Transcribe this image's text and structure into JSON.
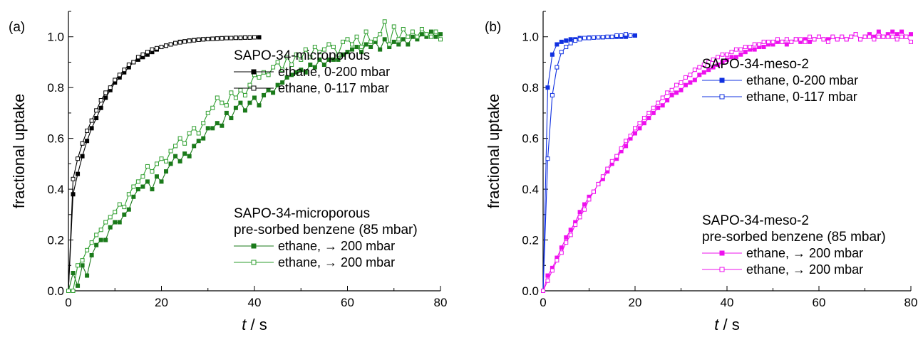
{
  "chart_data": [
    {
      "type": "line",
      "panel_label": "(a)",
      "xlabel_symbol": "t",
      "xlabel_unit": "/  s",
      "ylabel": "fractional uptake",
      "xlim": [
        0,
        80
      ],
      "ylim": [
        0,
        1.1
      ],
      "xticks": [
        "0",
        "20",
        "40",
        "60",
        "80"
      ],
      "yticks": [
        "0.0",
        "0.2",
        "0.4",
        "0.6",
        "0.8",
        "1.0"
      ],
      "legend_groups": [
        {
          "title_lines": [
            "SAPO-34-microporous"
          ],
          "series_indices": [
            0,
            1
          ]
        },
        {
          "title_lines": [
            "SAPO-34-microporous",
            "pre-sorbed benzene (85 mbar)"
          ],
          "series_indices": [
            2,
            3
          ]
        }
      ],
      "series": [
        {
          "name": "ethane, 0-200 mbar",
          "color": "#000000",
          "marker": "filled-square",
          "x": [
            0,
            1,
            2,
            3,
            4,
            5,
            6,
            7,
            8,
            9,
            10,
            11,
            12,
            13,
            14,
            15,
            16,
            17,
            18,
            19,
            20,
            21,
            22,
            23,
            24,
            25,
            26,
            27,
            28,
            29,
            30,
            31,
            32,
            33,
            34,
            35,
            36,
            37,
            38,
            39,
            40,
            41
          ],
          "y": [
            0.0,
            0.38,
            0.46,
            0.53,
            0.59,
            0.64,
            0.68,
            0.72,
            0.76,
            0.79,
            0.82,
            0.84,
            0.86,
            0.88,
            0.9,
            0.91,
            0.92,
            0.93,
            0.94,
            0.95,
            0.96,
            0.965,
            0.97,
            0.975,
            0.98,
            0.982,
            0.985,
            0.987,
            0.989,
            0.99,
            0.991,
            0.992,
            0.993,
            0.994,
            0.995,
            0.995,
            0.996,
            0.996,
            0.997,
            0.997,
            0.998,
            0.998
          ]
        },
        {
          "name": "ethane, 0-117 mbar",
          "color": "#000000",
          "marker": "open-square",
          "x": [
            0,
            1,
            2,
            3,
            4,
            5,
            6,
            7,
            8,
            9,
            10,
            11,
            12,
            13,
            14,
            15,
            16,
            17,
            18,
            19,
            20,
            21,
            22,
            23,
            24,
            25,
            26,
            27,
            28,
            29,
            30,
            31,
            32,
            33,
            34,
            35,
            36,
            37,
            38,
            39,
            40
          ],
          "y": [
            0.0,
            0.44,
            0.52,
            0.58,
            0.63,
            0.67,
            0.71,
            0.75,
            0.78,
            0.8,
            0.83,
            0.85,
            0.87,
            0.89,
            0.9,
            0.92,
            0.93,
            0.94,
            0.95,
            0.955,
            0.96,
            0.965,
            0.97,
            0.975,
            0.978,
            0.981,
            0.984,
            0.986,
            0.988,
            0.99,
            0.991,
            0.992,
            0.993,
            0.994,
            0.995,
            0.995,
            0.996,
            0.996,
            0.997,
            0.997,
            0.998
          ]
        },
        {
          "name": "ethane, → 200 mbar",
          "color": "#1a7a1a",
          "marker": "filled-square",
          "x": [
            0,
            1,
            2,
            3,
            4,
            5,
            6,
            7,
            8,
            9,
            10,
            11,
            12,
            13,
            14,
            15,
            16,
            17,
            18,
            19,
            20,
            21,
            22,
            23,
            24,
            25,
            26,
            27,
            28,
            29,
            30,
            31,
            32,
            33,
            34,
            35,
            36,
            37,
            38,
            39,
            40,
            41,
            42,
            43,
            44,
            45,
            46,
            47,
            48,
            49,
            50,
            51,
            52,
            53,
            54,
            55,
            56,
            57,
            58,
            59,
            60,
            61,
            62,
            63,
            64,
            65,
            66,
            67,
            68,
            69,
            70,
            71,
            72,
            73,
            74,
            75,
            76,
            77,
            78,
            79,
            80
          ],
          "y": [
            0.0,
            0.07,
            0.02,
            0.1,
            0.06,
            0.14,
            0.18,
            0.2,
            0.2,
            0.25,
            0.27,
            0.27,
            0.3,
            0.32,
            0.37,
            0.4,
            0.41,
            0.43,
            0.4,
            0.45,
            0.43,
            0.47,
            0.5,
            0.53,
            0.51,
            0.54,
            0.53,
            0.57,
            0.59,
            0.6,
            0.64,
            0.64,
            0.66,
            0.65,
            0.7,
            0.68,
            0.72,
            0.74,
            0.71,
            0.74,
            0.76,
            0.73,
            0.77,
            0.79,
            0.78,
            0.81,
            0.82,
            0.84,
            0.85,
            0.86,
            0.87,
            0.86,
            0.89,
            0.88,
            0.91,
            0.89,
            0.91,
            0.91,
            0.91,
            0.93,
            0.94,
            0.95,
            0.96,
            0.94,
            0.97,
            0.96,
            0.98,
            0.95,
            0.99,
            0.96,
            0.98,
            0.97,
            0.99,
            0.97,
            1.0,
            0.99,
            1.01,
            1.0,
            1.02,
            1.0,
            1.01
          ]
        },
        {
          "name": "ethane, → 200 mbar",
          "color": "#2e9e2e",
          "marker": "open-square",
          "x": [
            0,
            1,
            2,
            3,
            4,
            5,
            6,
            7,
            8,
            9,
            10,
            11,
            12,
            13,
            14,
            15,
            16,
            17,
            18,
            19,
            20,
            21,
            22,
            23,
            24,
            25,
            26,
            27,
            28,
            29,
            30,
            31,
            32,
            33,
            34,
            35,
            36,
            37,
            38,
            39,
            40,
            41,
            42,
            43,
            44,
            45,
            46,
            47,
            48,
            49,
            50,
            51,
            52,
            53,
            54,
            55,
            56,
            57,
            58,
            59,
            60,
            61,
            62,
            63,
            64,
            65,
            66,
            67,
            68,
            69,
            70,
            71,
            72,
            73,
            74,
            75,
            76,
            77,
            78,
            79,
            80
          ],
          "y": [
            0.0,
            0.0,
            0.1,
            0.12,
            0.16,
            0.19,
            0.22,
            0.24,
            0.27,
            0.29,
            0.31,
            0.34,
            0.33,
            0.38,
            0.41,
            0.43,
            0.45,
            0.49,
            0.47,
            0.5,
            0.52,
            0.51,
            0.55,
            0.57,
            0.6,
            0.58,
            0.62,
            0.64,
            0.62,
            0.66,
            0.7,
            0.72,
            0.76,
            0.74,
            0.73,
            0.78,
            0.76,
            0.79,
            0.77,
            0.81,
            0.85,
            0.84,
            0.86,
            0.85,
            0.88,
            0.9,
            0.87,
            0.92,
            0.89,
            0.93,
            0.91,
            0.95,
            0.92,
            0.96,
            0.94,
            0.95,
            0.97,
            0.96,
            0.93,
            0.98,
            0.99,
            0.97,
            1.0,
            0.96,
            1.02,
            0.98,
            0.99,
            1.01,
            1.06,
            0.97,
            1.04,
            0.99,
            1.03,
            1.0,
            1.02,
            1.0,
            1.03,
            1.01,
            1.0,
            1.02,
            0.99
          ]
        }
      ]
    },
    {
      "type": "line",
      "panel_label": "(b)",
      "xlabel_symbol": "t",
      "xlabel_unit": "/  s",
      "ylabel": "fractional uptake",
      "xlim": [
        0,
        80
      ],
      "ylim": [
        0,
        1.1
      ],
      "xticks": [
        "0",
        "20",
        "40",
        "60",
        "80"
      ],
      "yticks": [
        "0.0",
        "0.2",
        "0.4",
        "0.6",
        "0.8",
        "1.0"
      ],
      "legend_groups": [
        {
          "title_lines": [
            "SAPO-34-meso-2"
          ],
          "series_indices": [
            0,
            1
          ]
        },
        {
          "title_lines": [
            "SAPO-34-meso-2",
            "pre-sorbed benzene (85 mbar)"
          ],
          "series_indices": [
            2,
            3
          ]
        }
      ],
      "series": [
        {
          "name": "ethane, 0-200 mbar",
          "color": "#1030e0",
          "marker": "filled-square",
          "x": [
            0,
            1,
            2,
            3,
            4,
            5,
            6,
            7,
            8,
            9,
            10,
            11,
            12,
            13,
            14,
            15,
            16,
            17,
            18,
            19,
            20
          ],
          "y": [
            0.0,
            0.8,
            0.93,
            0.97,
            0.98,
            0.985,
            0.99,
            0.99,
            0.995,
            0.995,
            0.997,
            0.997,
            0.998,
            0.998,
            0.999,
            0.999,
            1.0,
            1.0,
            1.0,
            1.005,
            1.005
          ]
        },
        {
          "name": "ethane, 0-117 mbar",
          "color": "#1030e0",
          "marker": "open-square",
          "x": [
            0,
            1,
            2,
            3,
            4,
            5,
            6,
            7,
            8,
            9,
            10,
            11,
            12,
            13,
            14,
            15,
            16,
            17,
            18,
            19
          ],
          "y": [
            0.0,
            0.52,
            0.77,
            0.88,
            0.94,
            0.96,
            0.975,
            0.985,
            0.99,
            0.995,
            0.995,
            0.997,
            0.998,
            0.999,
            1.0,
            1.0,
            1.005,
            1.005,
            1.01,
            1.005
          ]
        },
        {
          "name": "ethane, → 200 mbar",
          "color": "#ee10ee",
          "marker": "filled-square",
          "x": [
            0,
            1,
            2,
            3,
            4,
            5,
            6,
            7,
            8,
            9,
            10,
            11,
            12,
            13,
            14,
            15,
            16,
            17,
            18,
            19,
            20,
            21,
            22,
            23,
            24,
            25,
            26,
            27,
            28,
            29,
            30,
            31,
            32,
            33,
            34,
            35,
            36,
            37,
            38,
            39,
            40,
            41,
            42,
            43,
            44,
            45,
            46,
            47,
            48,
            49,
            50,
            51,
            52,
            53,
            54,
            55,
            56,
            57,
            58,
            59,
            60,
            61,
            62,
            63,
            64,
            65,
            66,
            67,
            68,
            69,
            70,
            71,
            72,
            73,
            74,
            75,
            76,
            77,
            78,
            79,
            80
          ],
          "y": [
            0.0,
            0.06,
            0.09,
            0.13,
            0.17,
            0.21,
            0.24,
            0.27,
            0.31,
            0.34,
            0.37,
            0.39,
            0.42,
            0.44,
            0.47,
            0.5,
            0.52,
            0.55,
            0.57,
            0.6,
            0.62,
            0.64,
            0.66,
            0.68,
            0.7,
            0.72,
            0.73,
            0.75,
            0.77,
            0.78,
            0.79,
            0.81,
            0.82,
            0.83,
            0.85,
            0.86,
            0.87,
            0.88,
            0.89,
            0.9,
            0.91,
            0.92,
            0.92,
            0.93,
            0.94,
            0.95,
            0.95,
            0.96,
            0.96,
            0.97,
            0.97,
            0.98,
            0.98,
            0.97,
            0.98,
            0.99,
            0.98,
            0.99,
            0.98,
            0.99,
            1.0,
            0.99,
            0.99,
            1.0,
            0.99,
            1.0,
            0.99,
            1.0,
            1.01,
            0.99,
            1.0,
            1.01,
            1.0,
            1.02,
            1.0,
            1.01,
            1.02,
            1.01,
            1.02,
            1.0,
            1.01
          ]
        },
        {
          "name": "ethane, → 200 mbar",
          "color": "#ee10ee",
          "marker": "open-square",
          "x": [
            0,
            1,
            2,
            3,
            4,
            5,
            6,
            7,
            8,
            9,
            10,
            11,
            12,
            13,
            14,
            15,
            16,
            17,
            18,
            19,
            20,
            21,
            22,
            23,
            24,
            25,
            26,
            27,
            28,
            29,
            30,
            31,
            32,
            33,
            34,
            35,
            36,
            37,
            38,
            39,
            40,
            41,
            42,
            43,
            44,
            45,
            46,
            47,
            48,
            49,
            50,
            51,
            52,
            53,
            54,
            55,
            56,
            57,
            58,
            59,
            60,
            61,
            62,
            63,
            64,
            65,
            66,
            67,
            68,
            69,
            70,
            71,
            72,
            73,
            74,
            75,
            76,
            77,
            78,
            79,
            80
          ],
          "y": [
            0.0,
            0.04,
            0.08,
            0.12,
            0.15,
            0.19,
            0.22,
            0.26,
            0.29,
            0.32,
            0.36,
            0.39,
            0.42,
            0.45,
            0.48,
            0.51,
            0.53,
            0.56,
            0.59,
            0.61,
            0.64,
            0.66,
            0.68,
            0.7,
            0.72,
            0.74,
            0.76,
            0.78,
            0.79,
            0.81,
            0.82,
            0.84,
            0.85,
            0.87,
            0.88,
            0.89,
            0.9,
            0.91,
            0.92,
            0.93,
            0.93,
            0.94,
            0.95,
            0.95,
            0.96,
            0.96,
            0.97,
            0.97,
            0.98,
            0.98,
            0.98,
            0.99,
            0.98,
            0.99,
            0.98,
            0.99,
            0.99,
            0.98,
            1.0,
            0.99,
            1.0,
            0.99,
            0.98,
            1.0,
            0.99,
            1.0,
            0.99,
            1.0,
            1.01,
            0.99,
            1.0,
            1.0,
            0.99,
            1.0,
            1.0,
            1.0,
            1.0,
            0.99,
            1.0,
            1.0,
            0.98
          ]
        }
      ]
    }
  ]
}
